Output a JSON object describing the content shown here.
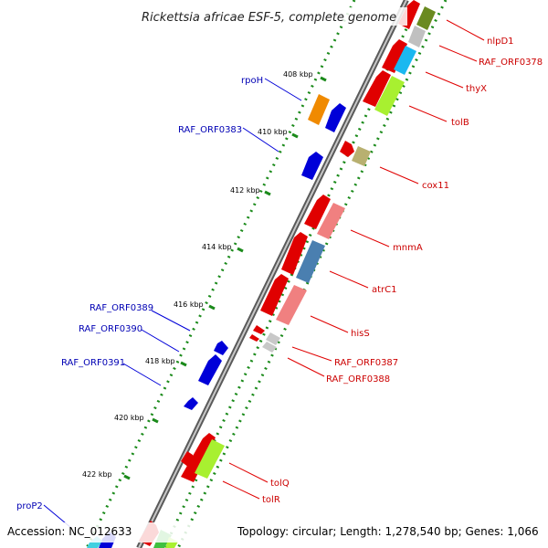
{
  "title": "Rickettsia africae ESF-5, complete genome",
  "footer": {
    "accession": "Accession: NC_012633",
    "topology": "Topology: circular; Length: 1,278,540 bp; Genes: 1,066"
  },
  "ticks": [
    "408 kbp",
    "410 kbp",
    "412 kbp",
    "414 kbp",
    "416 kbp",
    "418 kbp",
    "420 kbp",
    "422 kbp"
  ],
  "genes_left": [
    "rpoH",
    "RAF_ORF0383",
    "RAF_ORF0389",
    "RAF_ORF0390",
    "RAF_ORF0391",
    "proP2"
  ],
  "genes_right": [
    "nlpD1",
    "RAF_ORF0378",
    "thyX",
    "tolB",
    "cox11",
    "mnmA",
    "atrC1",
    "hisS",
    "RAF_ORF0387",
    "RAF_ORF0388",
    "tolQ",
    "tolR"
  ],
  "colors": {
    "blue_gene": "#0000d8",
    "red_gene": "#e00000",
    "green_dots": "#1a8a1a",
    "blue_label": "#0000b4",
    "red_label": "#cc0000",
    "lime_feature": "#a8f030",
    "orange_feature": "#f08a00",
    "teal_feature": "#1ab8f0",
    "olive_feature": "#6a8a20",
    "khaki_feature": "#b8b070",
    "steel_feature": "#4a7fb0",
    "pink_feature": "#f08080"
  }
}
